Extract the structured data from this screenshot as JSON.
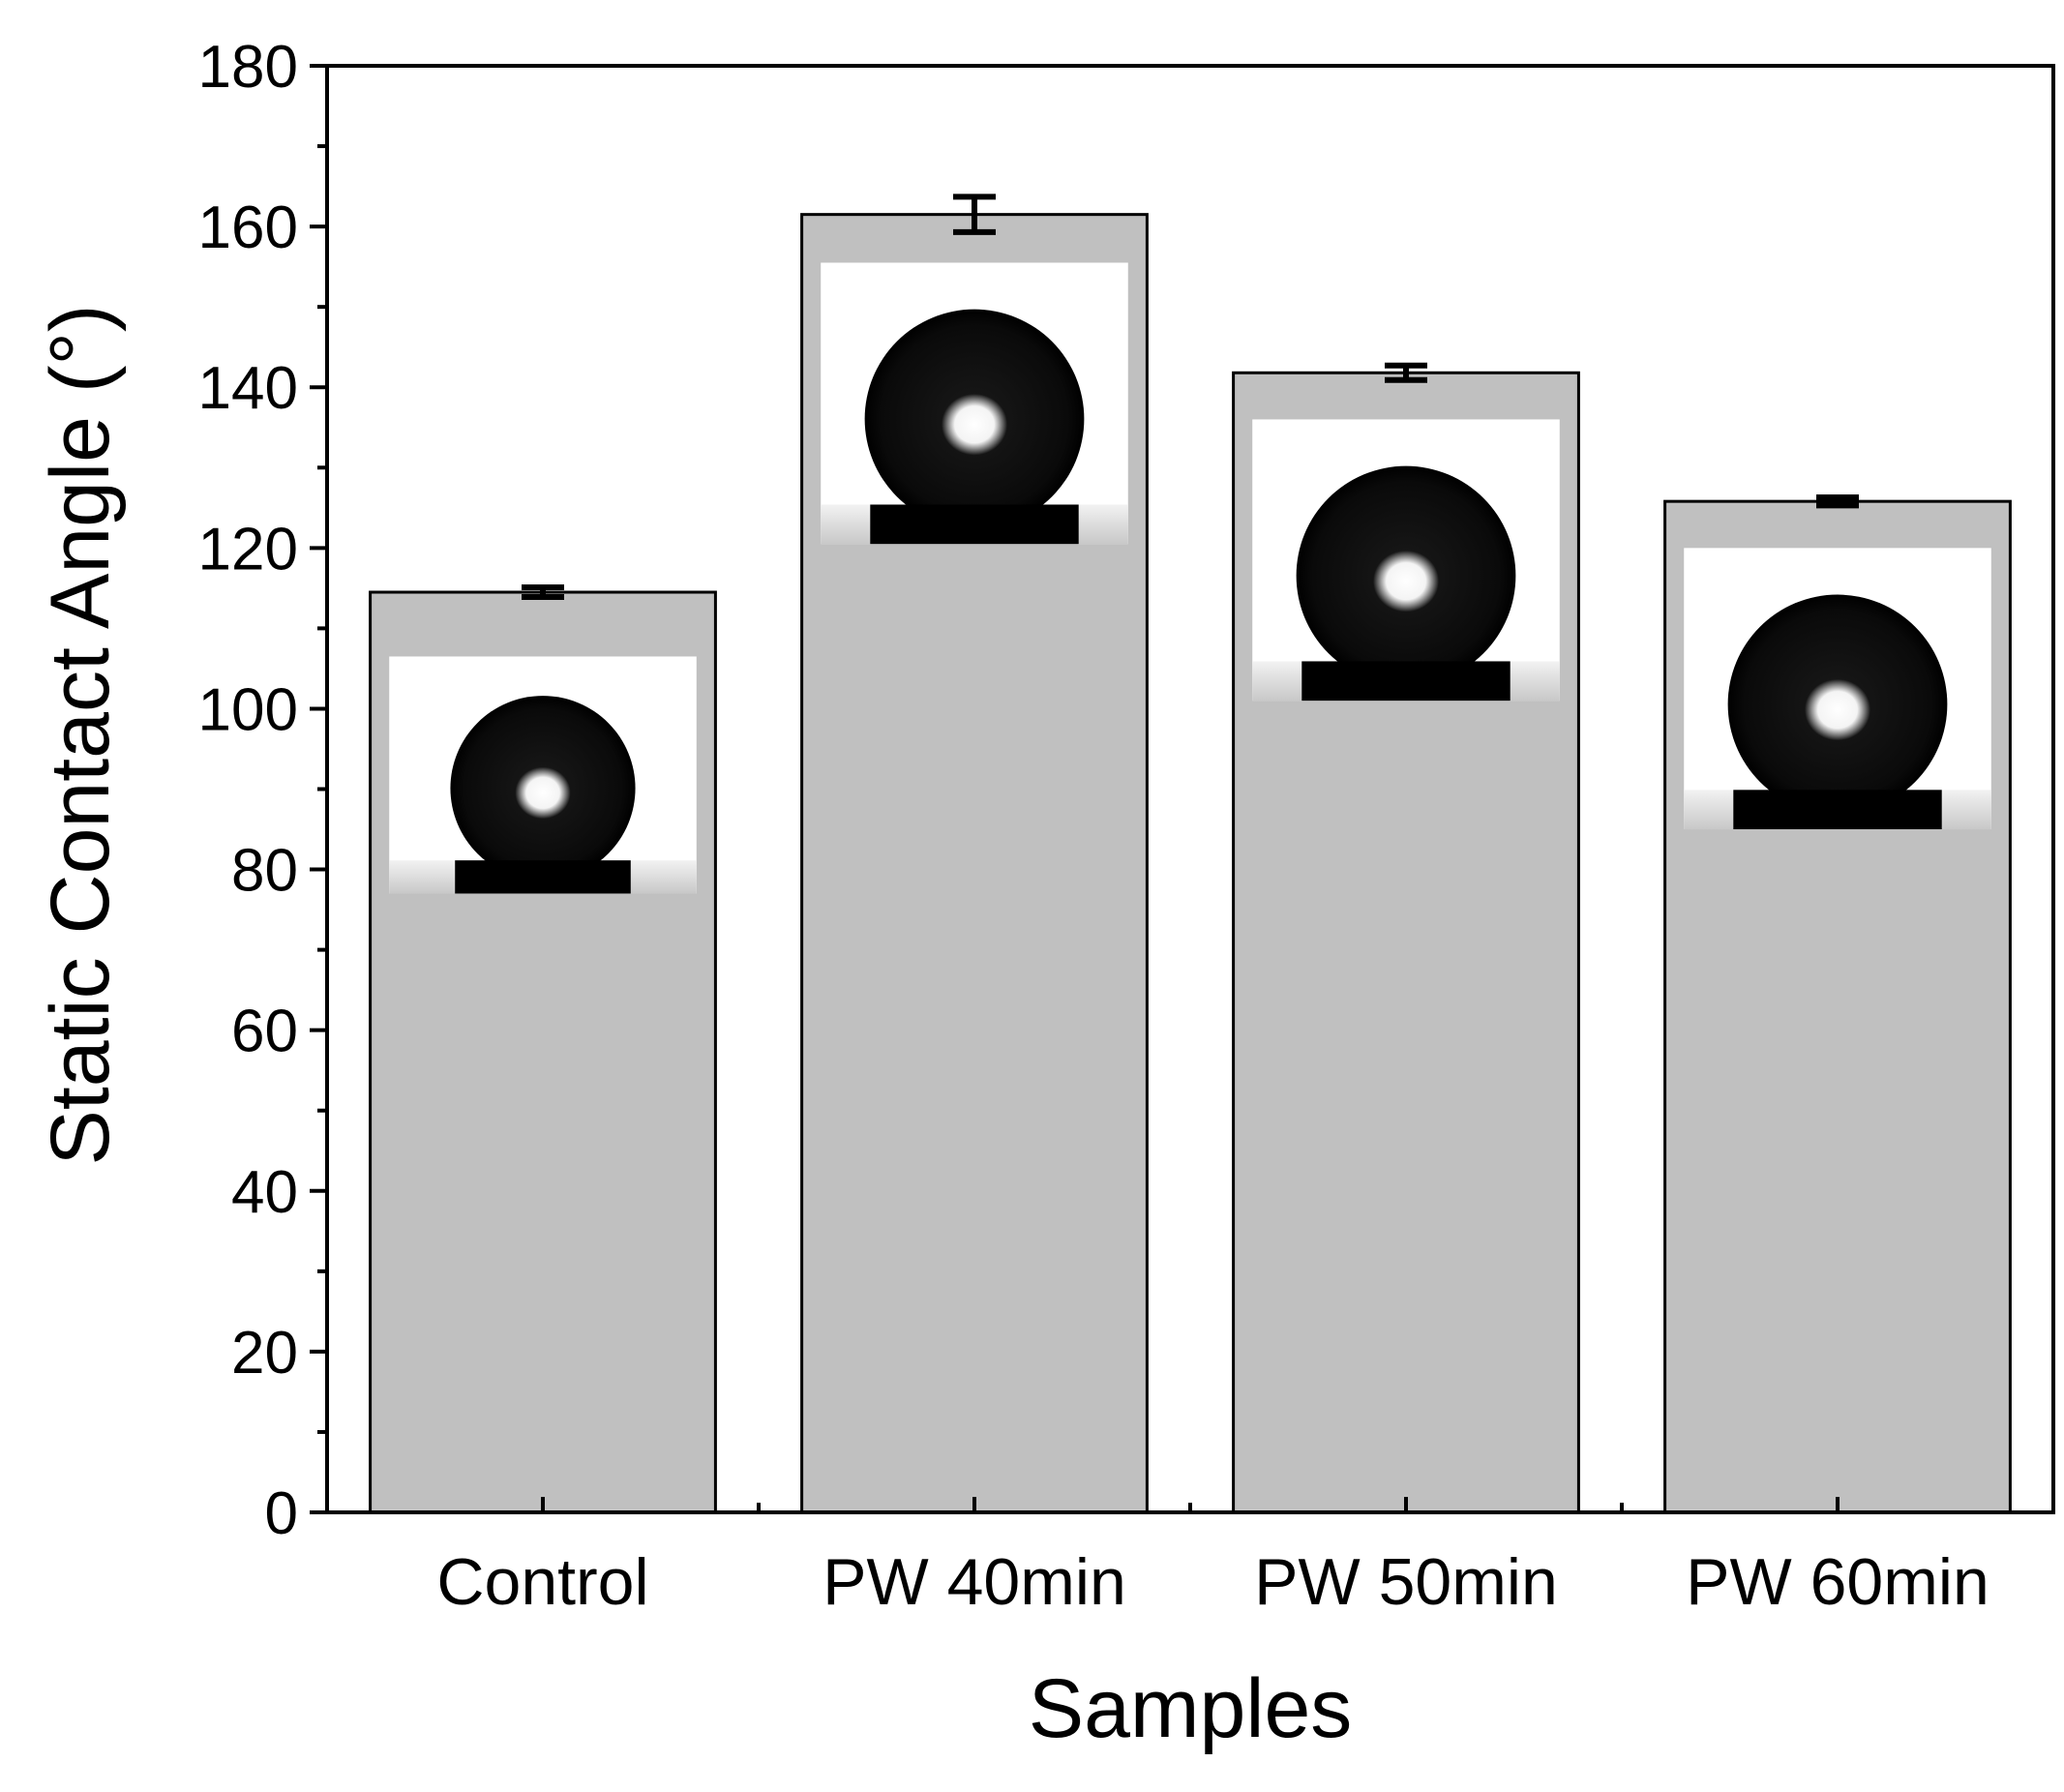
{
  "chart_data": {
    "type": "bar",
    "categories": [
      "Control",
      "PW 40min",
      "PW 50min",
      "PW 60min"
    ],
    "values": [
      114.5,
      161.5,
      141.8,
      125.8
    ],
    "errors": [
      0.6,
      2.2,
      0.9,
      0.5
    ],
    "xlabel": "Samples",
    "ylabel": "Static Contact Angle (°)",
    "ylim": [
      0,
      180
    ],
    "yticks": [
      0,
      20,
      40,
      60,
      80,
      100,
      120,
      140,
      160,
      180
    ],
    "bar_color": "#c0c0c0",
    "insets": [
      {
        "category": "Control",
        "top_value": 106.5,
        "bottom_value": 77
      },
      {
        "category": "PW 40min",
        "top_value": 155.5,
        "bottom_value": 120.5
      },
      {
        "category": "PW 50min",
        "top_value": 136,
        "bottom_value": 101
      },
      {
        "category": "PW 60min",
        "top_value": 120,
        "bottom_value": 85
      }
    ]
  }
}
